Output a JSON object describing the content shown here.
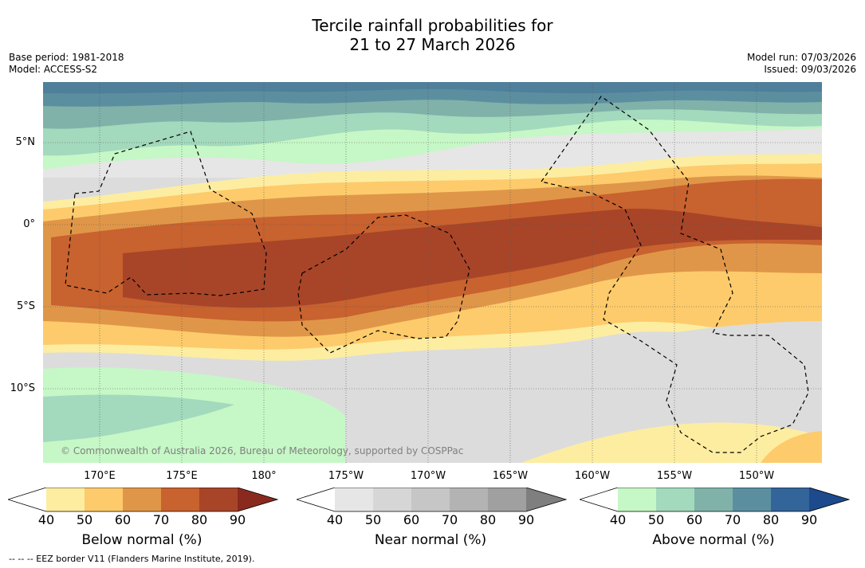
{
  "title": {
    "line1": "Tercile rainfall probabilities for",
    "line2": "21 to 27 March 2026"
  },
  "meta": {
    "base_period": "Base period: 1981-2018",
    "model": "Model: ACCESS-S2",
    "model_run": "Model run: 07/03/2026",
    "issued": "Issued: 09/03/2026"
  },
  "map": {
    "lat_labels": [
      "5°N",
      "0°",
      "5°S",
      "10°S"
    ],
    "lon_labels": [
      "170°E",
      "175°E",
      "180°",
      "175°W",
      "170°W",
      "165°W",
      "160°W",
      "155°W",
      "150°W"
    ],
    "credit": "© Commonwealth of Australia 2026, Bureau of Meteorology, supported by COSPPac"
  },
  "colorbars": [
    {
      "title": "Below normal (%)",
      "ticks": [
        "40",
        "50",
        "60",
        "70",
        "80",
        "90"
      ],
      "colors": [
        "#ffffff",
        "#fdeda1",
        "#fdcb6b",
        "#e09648",
        "#c8622f",
        "#a84528",
        "#8a2a1e"
      ]
    },
    {
      "title": "Near normal (%)",
      "ticks": [
        "40",
        "50",
        "60",
        "70",
        "80",
        "90"
      ],
      "colors": [
        "#ffffff",
        "#e6e6e6",
        "#d6d6d6",
        "#c6c6c6",
        "#b3b3b3",
        "#a0a0a0",
        "#7f7f7f"
      ]
    },
    {
      "title": "Above normal (%)",
      "ticks": [
        "40",
        "50",
        "60",
        "70",
        "80",
        "90"
      ],
      "colors": [
        "#ffffff",
        "#c6f7c6",
        "#a3d9bd",
        "#80b2aa",
        "#5b8fa0",
        "#33649a",
        "#1c4a8c"
      ]
    }
  ],
  "footnote": "--  --  -- EEZ border V11 (Flanders Marine Institute, 2019)."
}
